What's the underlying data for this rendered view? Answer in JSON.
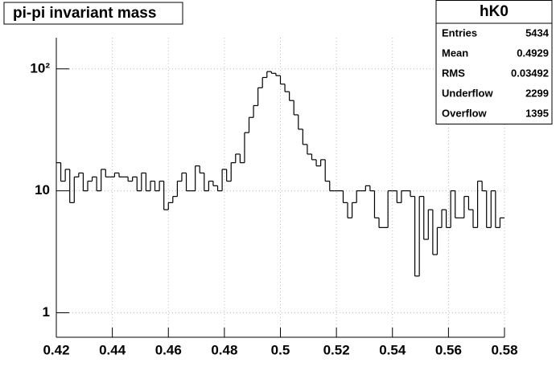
{
  "chart_data": {
    "type": "histogram",
    "title": "pi-pi invariant mass",
    "bins": [
      0.42,
      0.4216,
      0.4232,
      0.4248,
      0.4264,
      0.428,
      0.4296,
      0.4312,
      0.4328,
      0.4344,
      0.436,
      0.4376,
      0.4392,
      0.4408,
      0.4424,
      0.444,
      0.4456,
      0.4472,
      0.4488,
      0.4504,
      0.452,
      0.4536,
      0.4552,
      0.4568,
      0.4584,
      0.46,
      0.4616,
      0.4632,
      0.4648,
      0.4664,
      0.468,
      0.4696,
      0.4712,
      0.4728,
      0.4744,
      0.476,
      0.4776,
      0.4792,
      0.4808,
      0.4824,
      0.484,
      0.4856,
      0.4872,
      0.4888,
      0.4904,
      0.492,
      0.4936,
      0.4952,
      0.4968,
      0.4984,
      0.5,
      0.5016,
      0.5032,
      0.5048,
      0.5064,
      0.508,
      0.5096,
      0.5112,
      0.5128,
      0.5144,
      0.516,
      0.5176,
      0.5192,
      0.5208,
      0.5224,
      0.524,
      0.5256,
      0.5272,
      0.5288,
      0.5304,
      0.532,
      0.5336,
      0.5352,
      0.5368,
      0.5384,
      0.54,
      0.5416,
      0.5432,
      0.5448,
      0.5464,
      0.548,
      0.5496,
      0.5512,
      0.5528,
      0.5544,
      0.556,
      0.5576,
      0.5592,
      0.5608,
      0.5624,
      0.564,
      0.5656,
      0.5672,
      0.5688,
      0.5704,
      0.572,
      0.5736,
      0.5752,
      0.5768,
      0.5784,
      0.58
    ],
    "values": [
      17,
      12,
      15,
      8,
      13,
      14,
      10,
      12,
      13,
      10,
      15,
      13,
      13,
      14,
      13,
      13,
      12,
      13,
      10,
      14,
      10,
      12,
      10,
      12,
      7,
      8,
      9,
      12,
      14,
      10,
      10,
      16,
      14,
      10,
      12,
      11,
      10,
      15,
      12,
      17,
      20,
      17,
      30,
      40,
      50,
      70,
      85,
      95,
      92,
      88,
      75,
      65,
      55,
      42,
      32,
      24,
      20,
      18,
      16,
      18,
      12,
      10,
      10,
      10,
      8,
      6,
      8,
      10,
      10,
      11,
      10,
      6,
      5,
      5,
      10,
      10,
      8,
      10,
      10,
      9,
      2,
      9,
      4,
      7,
      3,
      5,
      7,
      5,
      10,
      6,
      6,
      9,
      7,
      5,
      12,
      10,
      5,
      10,
      5,
      6
    ],
    "color": "#000000",
    "xlim": [
      0.42,
      0.58
    ],
    "xticks": [
      0.42,
      0.44,
      0.46,
      0.48,
      0.5,
      0.52,
      0.54,
      0.56,
      0.58
    ],
    "ylim": [
      0.63,
      180
    ],
    "yticks": [
      1,
      10,
      {
        "value": 100,
        "label": "10²"
      }
    ],
    "log_y": true,
    "grid": true,
    "stats": {
      "title": "hK0",
      "rows": [
        [
          "Entries",
          5434
        ],
        [
          "Mean",
          0.4929
        ],
        [
          "RMS",
          0.03492
        ],
        [
          "Underflow",
          2299
        ],
        [
          "Overflow",
          1395
        ]
      ]
    }
  }
}
